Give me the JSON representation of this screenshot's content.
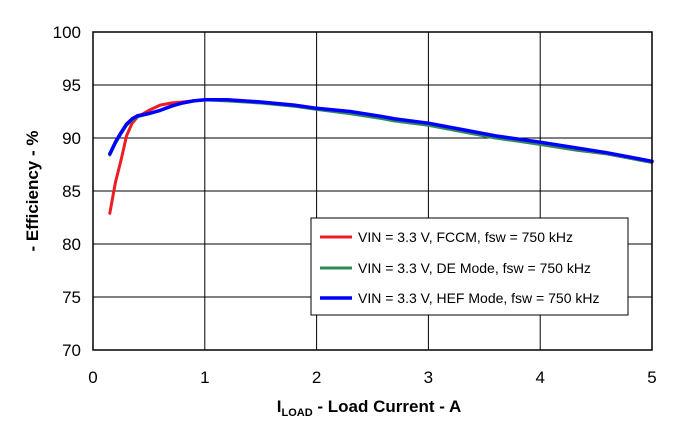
{
  "chart_data": {
    "type": "line",
    "title": "",
    "xlabel": {
      "main": "I",
      "sub": "LOAD",
      "rest": " - Load Current - A"
    },
    "ylabel": "- Efficiency - %",
    "xlim": [
      0,
      5
    ],
    "ylim": [
      70,
      100
    ],
    "xticks": [
      0,
      1,
      2,
      3,
      4,
      5
    ],
    "yticks": [
      70,
      75,
      80,
      85,
      90,
      95,
      100
    ],
    "xtick_labels": [
      "0",
      "1",
      "2",
      "3",
      "4",
      "5"
    ],
    "ytick_labels": [
      "70",
      "75",
      "80",
      "85",
      "90",
      "95",
      "100"
    ],
    "grid": true,
    "legend_position": "lower-right",
    "series": [
      {
        "name": "VIN = 3.3 V, FCCM, fsw = 750 kHz",
        "color": "#ee1c24",
        "x": [
          0.15,
          0.2,
          0.25,
          0.3,
          0.35,
          0.4,
          0.5,
          0.6,
          0.7,
          0.8,
          0.9,
          1.0,
          1.2,
          1.5,
          1.8,
          2.0,
          2.3,
          2.6,
          2.7,
          3.0,
          3.3,
          3.6,
          4.0,
          4.3,
          4.6,
          5.0
        ],
        "y": [
          82.9,
          85.8,
          87.9,
          90.2,
          91.4,
          92.0,
          92.6,
          93.1,
          93.3,
          93.4,
          93.5,
          93.6,
          93.6,
          93.4,
          93.1,
          92.8,
          92.4,
          91.9,
          91.7,
          91.3,
          90.7,
          90.1,
          89.4,
          88.9,
          88.5,
          87.7
        ]
      },
      {
        "name": "VIN = 3.3 V, DE Mode, fsw = 750 kHz",
        "color": "#2e8b57",
        "x": [
          0.15,
          0.2,
          0.25,
          0.3,
          0.35,
          0.4,
          0.5,
          0.6,
          0.7,
          0.8,
          0.9,
          1.0,
          1.2,
          1.5,
          1.8,
          2.0,
          2.3,
          2.6,
          2.7,
          3.0,
          3.3,
          3.6,
          4.0,
          4.3,
          4.6,
          5.0
        ],
        "y": [
          88.4,
          89.5,
          90.4,
          91.2,
          91.7,
          92.0,
          92.3,
          92.6,
          93.0,
          93.3,
          93.5,
          93.6,
          93.5,
          93.3,
          93.0,
          92.7,
          92.3,
          91.8,
          91.6,
          91.2,
          90.6,
          90.0,
          89.4,
          88.9,
          88.5,
          87.7
        ]
      },
      {
        "name": "VIN = 3.3 V, HEF Mode, fsw = 750 kHz",
        "color": "#0000ff",
        "x": [
          0.15,
          0.2,
          0.25,
          0.3,
          0.35,
          0.4,
          0.5,
          0.6,
          0.7,
          0.8,
          0.9,
          1.0,
          1.2,
          1.5,
          1.8,
          2.0,
          2.3,
          2.6,
          2.7,
          3.0,
          3.3,
          3.6,
          4.0,
          4.3,
          4.6,
          5.0
        ],
        "y": [
          88.5,
          89.6,
          90.5,
          91.3,
          91.8,
          92.1,
          92.3,
          92.6,
          93.0,
          93.3,
          93.5,
          93.6,
          93.6,
          93.4,
          93.1,
          92.8,
          92.5,
          92.0,
          91.8,
          91.4,
          90.8,
          90.2,
          89.6,
          89.1,
          88.6,
          87.8
        ]
      }
    ]
  }
}
